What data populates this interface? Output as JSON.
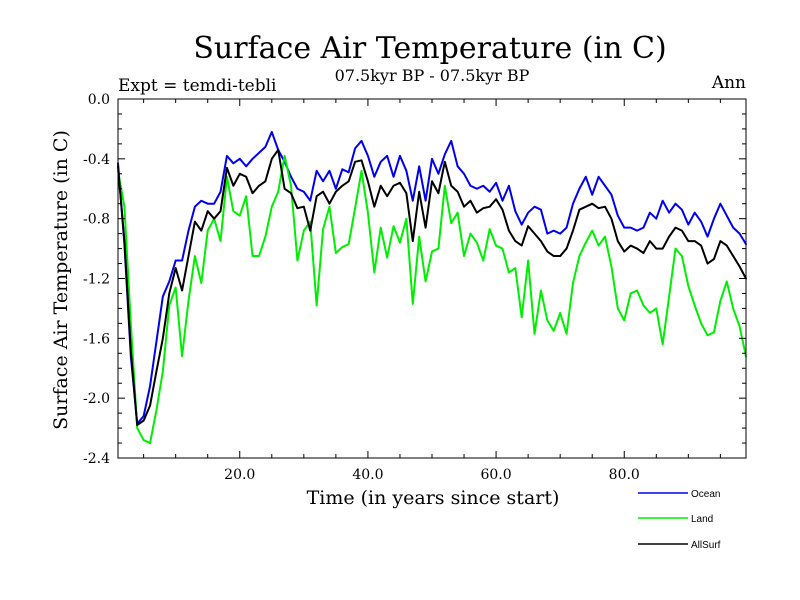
{
  "chart_data": {
    "type": "line",
    "title": "Surface Air Temperature (in C)",
    "subtitle": "07.5kyr BP - 07.5kyr BP",
    "left_label": "Expt = temdi-tebli",
    "right_label": "Ann",
    "xlabel": "Time (in years since start)",
    "ylabel": "Surface Air Temperature (in C)",
    "xlim": [
      1,
      99
    ],
    "ylim": [
      -2.4,
      0.0
    ],
    "xticks": [
      20,
      40,
      60,
      80
    ],
    "xtick_labels": [
      "20.0",
      "40.0",
      "60.0",
      "80.0"
    ],
    "yticks": [
      0.0,
      -0.4,
      -0.8,
      -1.2,
      -1.6,
      -2.0,
      -2.4
    ],
    "ytick_labels": [
      "0.0",
      "-0.4",
      "-0.8",
      "-1.2",
      "-1.6",
      "-2.0",
      "-2.4"
    ],
    "x": [
      1,
      2,
      3,
      4,
      5,
      6,
      7,
      8,
      9,
      10,
      11,
      12,
      13,
      14,
      15,
      16,
      17,
      18,
      19,
      20,
      21,
      22,
      23,
      24,
      25,
      26,
      27,
      28,
      29,
      30,
      31,
      32,
      33,
      34,
      35,
      36,
      37,
      38,
      39,
      40,
      41,
      42,
      43,
      44,
      45,
      46,
      47,
      48,
      49,
      50,
      51,
      52,
      53,
      54,
      55,
      56,
      57,
      58,
      59,
      60,
      61,
      62,
      63,
      64,
      65,
      66,
      67,
      68,
      69,
      70,
      71,
      72,
      73,
      74,
      75,
      76,
      77,
      78,
      79,
      80,
      81,
      82,
      83,
      84,
      85,
      86,
      87,
      88,
      89,
      90,
      91,
      92,
      93,
      94,
      95,
      96,
      97,
      98,
      99
    ],
    "series": [
      {
        "name": "Ocean",
        "color": "#0000ee",
        "values": [
          -0.43,
          -0.97,
          -1.72,
          -2.17,
          -2.12,
          -1.92,
          -1.62,
          -1.32,
          -1.22,
          -1.08,
          -1.08,
          -0.88,
          -0.72,
          -0.68,
          -0.7,
          -0.7,
          -0.62,
          -0.38,
          -0.43,
          -0.4,
          -0.45,
          -0.4,
          -0.36,
          -0.32,
          -0.22,
          -0.34,
          -0.42,
          -0.52,
          -0.6,
          -0.62,
          -0.68,
          -0.48,
          -0.55,
          -0.48,
          -0.6,
          -0.47,
          -0.49,
          -0.33,
          -0.28,
          -0.38,
          -0.52,
          -0.42,
          -0.38,
          -0.52,
          -0.38,
          -0.48,
          -0.68,
          -0.45,
          -0.68,
          -0.4,
          -0.5,
          -0.37,
          -0.28,
          -0.45,
          -0.5,
          -0.58,
          -0.6,
          -0.58,
          -0.62,
          -0.56,
          -0.68,
          -0.58,
          -0.75,
          -0.84,
          -0.76,
          -0.72,
          -0.74,
          -0.9,
          -0.88,
          -0.9,
          -0.86,
          -0.7,
          -0.6,
          -0.52,
          -0.64,
          -0.52,
          -0.58,
          -0.64,
          -0.78,
          -0.86,
          -0.86,
          -0.88,
          -0.86,
          -0.76,
          -0.8,
          -0.68,
          -0.76,
          -0.7,
          -0.74,
          -0.84,
          -0.76,
          -0.82,
          -0.92,
          -0.8,
          -0.7,
          -0.78,
          -0.86,
          -0.9,
          -0.97
        ]
      },
      {
        "name": "Land",
        "color": "#00ee00",
        "values": [
          -0.48,
          -0.72,
          -1.5,
          -2.2,
          -2.28,
          -2.3,
          -2.08,
          -1.82,
          -1.38,
          -1.26,
          -1.72,
          -1.35,
          -1.05,
          -1.23,
          -0.88,
          -0.8,
          -0.95,
          -0.52,
          -0.75,
          -0.78,
          -0.65,
          -1.05,
          -1.05,
          -0.92,
          -0.72,
          -0.62,
          -0.38,
          -0.58,
          -1.08,
          -0.88,
          -0.82,
          -1.38,
          -0.87,
          -0.72,
          -1.03,
          -0.99,
          -0.97,
          -0.73,
          -0.48,
          -0.76,
          -1.16,
          -0.86,
          -1.06,
          -0.85,
          -0.96,
          -0.8,
          -1.37,
          -0.92,
          -1.22,
          -1.02,
          -1.0,
          -0.58,
          -0.83,
          -0.76,
          -1.05,
          -0.9,
          -0.96,
          -1.08,
          -0.87,
          -0.98,
          -1.0,
          -1.16,
          -1.13,
          -1.46,
          -1.08,
          -1.57,
          -1.28,
          -1.48,
          -1.55,
          -1.43,
          -1.57,
          -1.23,
          -1.05,
          -0.96,
          -0.88,
          -0.98,
          -0.92,
          -1.12,
          -1.4,
          -1.48,
          -1.3,
          -1.28,
          -1.38,
          -1.43,
          -1.4,
          -1.64,
          -1.32,
          -1.0,
          -1.05,
          -1.25,
          -1.38,
          -1.5,
          -1.58,
          -1.56,
          -1.35,
          -1.22,
          -1.4,
          -1.52,
          -1.72
        ]
      },
      {
        "name": "AllSurf",
        "color": "#000000",
        "values": [
          -0.45,
          -0.95,
          -1.68,
          -2.18,
          -2.15,
          -2.05,
          -1.82,
          -1.6,
          -1.3,
          -1.13,
          -1.28,
          -1.05,
          -0.82,
          -0.88,
          -0.75,
          -0.8,
          -0.75,
          -0.46,
          -0.58,
          -0.5,
          -0.52,
          -0.63,
          -0.58,
          -0.55,
          -0.4,
          -0.34,
          -0.6,
          -0.63,
          -0.73,
          -0.72,
          -0.88,
          -0.65,
          -0.62,
          -0.7,
          -0.62,
          -0.58,
          -0.55,
          -0.42,
          -0.41,
          -0.55,
          -0.72,
          -0.58,
          -0.65,
          -0.58,
          -0.56,
          -0.63,
          -0.95,
          -0.62,
          -0.86,
          -0.55,
          -0.63,
          -0.42,
          -0.58,
          -0.62,
          -0.72,
          -0.68,
          -0.76,
          -0.73,
          -0.72,
          -0.67,
          -0.74,
          -0.88,
          -0.95,
          -0.98,
          -0.85,
          -0.9,
          -0.95,
          -1.02,
          -1.05,
          -1.05,
          -1.0,
          -0.88,
          -0.74,
          -0.72,
          -0.7,
          -0.73,
          -0.72,
          -0.8,
          -0.95,
          -1.02,
          -0.98,
          -1.0,
          -1.03,
          -0.95,
          -1.0,
          -1.0,
          -0.92,
          -0.86,
          -0.88,
          -0.95,
          -0.95,
          -0.98,
          -1.1,
          -1.07,
          -0.95,
          -0.98,
          -1.05,
          -1.12,
          -1.2
        ]
      }
    ],
    "legend": {
      "placement": "bottom-right",
      "entries": [
        "Ocean",
        "Land",
        "AllSurf"
      ]
    }
  }
}
